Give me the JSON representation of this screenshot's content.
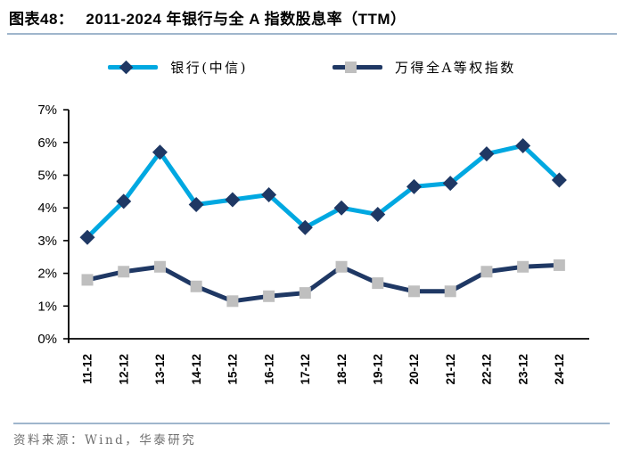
{
  "header": {
    "figure_label": "图表48：",
    "figure_title": "2011-2024 年银行与全 A 指数股息率（TTM）"
  },
  "chart_data": {
    "type": "line",
    "title": "2011-2024 年银行与全 A 指数股息率（TTM）",
    "categories": [
      "11-12",
      "12-12",
      "13-12",
      "14-12",
      "15-12",
      "16-12",
      "17-12",
      "18-12",
      "19-12",
      "20-12",
      "21-12",
      "22-12",
      "23-12",
      "24-12"
    ],
    "series": [
      {
        "name": "银行(中信)",
        "color": "#00A8E1",
        "marker": "diamond",
        "marker_color": "#1F3864",
        "values": [
          3.1,
          4.2,
          5.7,
          4.1,
          4.25,
          4.4,
          3.4,
          4.0,
          3.8,
          4.65,
          4.75,
          5.65,
          5.9,
          4.85
        ]
      },
      {
        "name": "万得全A等权指数",
        "color": "#1F3864",
        "marker": "square",
        "marker_color": "#BFBFBF",
        "values": [
          1.8,
          2.05,
          2.2,
          1.6,
          1.15,
          1.3,
          1.4,
          2.2,
          1.7,
          1.45,
          1.45,
          2.05,
          2.2,
          2.25
        ]
      }
    ],
    "ylim": [
      0,
      7
    ],
    "yticks": [
      0,
      1,
      2,
      3,
      4,
      5,
      6,
      7
    ],
    "ytick_suffix": "%",
    "xlabel": "",
    "ylabel": "",
    "grid": false,
    "legend_position": "top",
    "x_tick_rotation": -90
  },
  "footer": {
    "source": "资料来源：Wind，华泰研究"
  },
  "colors": {
    "divider": "#9FB6CC",
    "axis": "#000000",
    "tick_label": "#000000",
    "footer_text": "#6F6F6F"
  }
}
